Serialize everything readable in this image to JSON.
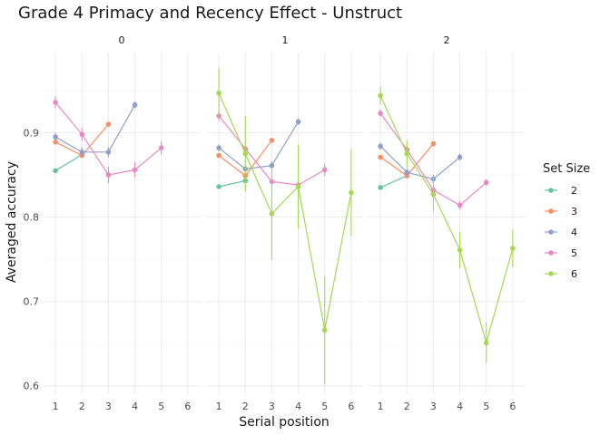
{
  "chart_data": {
    "type": "line",
    "title": "Grade 4 Primacy and Recency Effect - Unstruct",
    "xlabel": "Serial position",
    "ylabel": "Averaged accuracy",
    "x_ticks": [
      1,
      2,
      3,
      4,
      5,
      6
    ],
    "y_ticks": [
      0.6,
      0.7,
      0.8,
      0.9
    ],
    "ylim": [
      0.59,
      0.995
    ],
    "xlim": [
      0.55,
      6.45
    ],
    "grid": true,
    "legend": {
      "title": "Set Size",
      "position": "right",
      "entries": [
        "2",
        "3",
        "4",
        "5",
        "6"
      ]
    },
    "series_colors": {
      "2": "#66c2a5",
      "3": "#fc8d62",
      "4": "#8da0cb",
      "5": "#e78ac3",
      "6": "#a6d854"
    },
    "panels": [
      {
        "label": "0",
        "series": [
          {
            "set_size": "2",
            "x": [
              1,
              2
            ],
            "y": [
              0.855,
              0.874
            ],
            "err": [
              0.002,
              0.003
            ]
          },
          {
            "set_size": "3",
            "x": [
              1,
              2,
              3
            ],
            "y": [
              0.889,
              0.873,
              0.91
            ],
            "err": [
              0.002,
              0.003,
              0.002
            ]
          },
          {
            "set_size": "4",
            "x": [
              1,
              2,
              3,
              4
            ],
            "y": [
              0.895,
              0.877,
              0.877,
              0.933
            ],
            "err": [
              0.005,
              0.006,
              0.006,
              0.004
            ]
          },
          {
            "set_size": "5",
            "x": [
              1,
              2,
              3,
              4,
              5
            ],
            "y": [
              0.936,
              0.898,
              0.85,
              0.856,
              0.882
            ],
            "err": [
              0.007,
              0.008,
              0.01,
              0.009,
              0.008
            ]
          },
          {
            "set_size": "6",
            "x": [],
            "y": [],
            "err": []
          }
        ]
      },
      {
        "label": "1",
        "series": [
          {
            "set_size": "2",
            "x": [
              1,
              2
            ],
            "y": [
              0.836,
              0.843
            ],
            "err": [
              0.002,
              0.003
            ]
          },
          {
            "set_size": "3",
            "x": [
              1,
              2,
              3
            ],
            "y": [
              0.873,
              0.849,
              0.891
            ],
            "err": [
              0.002,
              0.003,
              0.002
            ]
          },
          {
            "set_size": "4",
            "x": [
              1,
              2,
              3,
              4
            ],
            "y": [
              0.882,
              0.857,
              0.861,
              0.913
            ],
            "err": [
              0.004,
              0.005,
              0.005,
              0.004
            ]
          },
          {
            "set_size": "5",
            "x": [
              1,
              2,
              3,
              4,
              5
            ],
            "y": [
              0.92,
              0.881,
              0.842,
              0.838,
              0.856
            ],
            "err": [
              0.006,
              0.007,
              0.006,
              0.006,
              0.007
            ]
          },
          {
            "set_size": "6",
            "x": [
              1,
              2,
              3,
              4,
              5,
              6
            ],
            "y": [
              0.947,
              0.875,
              0.804,
              0.836,
              0.666,
              0.829
            ],
            "err": [
              0.03,
              0.045,
              0.055,
              0.05,
              0.064,
              0.051
            ]
          }
        ]
      },
      {
        "label": "2",
        "series": [
          {
            "set_size": "2",
            "x": [
              1,
              2
            ],
            "y": [
              0.835,
              0.849
            ],
            "err": [
              0.002,
              0.003
            ]
          },
          {
            "set_size": "3",
            "x": [
              1,
              2,
              3
            ],
            "y": [
              0.871,
              0.849,
              0.887
            ],
            "err": [
              0.002,
              0.003,
              0.002
            ]
          },
          {
            "set_size": "4",
            "x": [
              1,
              2,
              3,
              4
            ],
            "y": [
              0.884,
              0.853,
              0.845,
              0.871
            ],
            "err": [
              0.004,
              0.005,
              0.005,
              0.004
            ]
          },
          {
            "set_size": "5",
            "x": [
              1,
              2,
              3,
              4,
              5
            ],
            "y": [
              0.923,
              0.88,
              0.832,
              0.814,
              0.841
            ],
            "err": [
              0.004,
              0.005,
              0.005,
              0.005,
              0.004
            ]
          },
          {
            "set_size": "6",
            "x": [
              1,
              2,
              3,
              4,
              5,
              6
            ],
            "y": [
              0.944,
              0.875,
              0.827,
              0.761,
              0.651,
              0.763
            ],
            "err": [
              0.011,
              0.016,
              0.02,
              0.022,
              0.024,
              0.022
            ]
          }
        ]
      }
    ]
  }
}
